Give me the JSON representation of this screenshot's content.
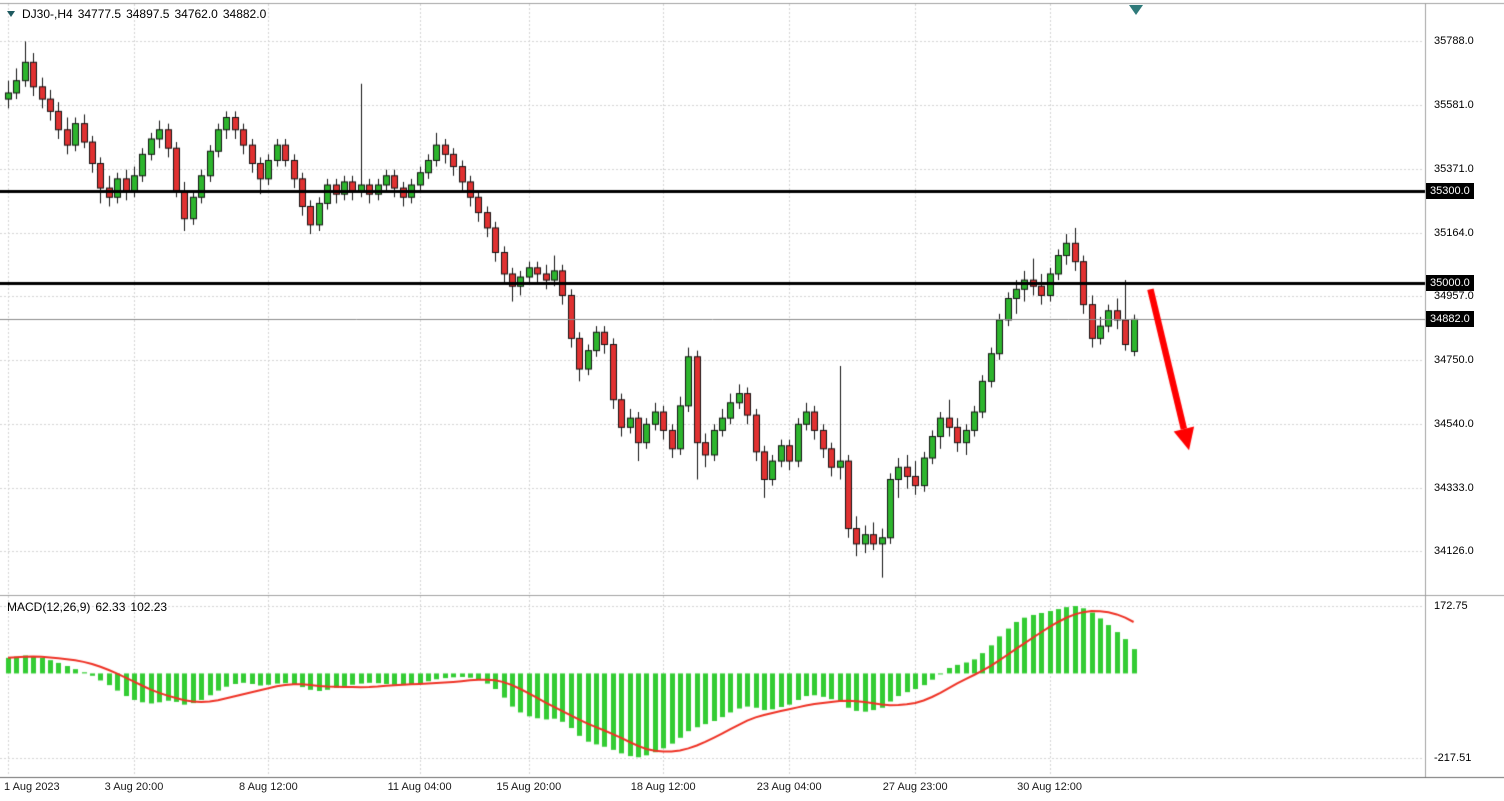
{
  "colors": {
    "bull": "#2db52d",
    "bear": "#e03131",
    "candle_border": "#111111",
    "wick": "#111111",
    "histogram": "#33cc33",
    "signal_line": "#ee3124",
    "level_line": "#000000",
    "current_price_line": "#8a8a8a",
    "arrow": "#ff0000",
    "grid": "#d4d4d4",
    "pane_border": "#a0a0a0",
    "bottom_axis_line": "#6b6b6b",
    "badge_bg": "#000000",
    "badge_text": "#ffffff"
  },
  "header": {
    "symbol": "DJ30-,H4",
    "open": "34777.5",
    "high": "34897.5",
    "low": "34762.0",
    "close": "34882.0"
  },
  "indicator": {
    "label": "MACD(12,26,9)",
    "macd_value": "62.33",
    "signal_value": "102.23"
  },
  "chart_data": [
    {
      "type": "candlestick",
      "symbol": "DJ30-",
      "timeframe": "H4",
      "ylim": [
        33990,
        35910
      ],
      "price_axis_labels": [
        {
          "text": "35788.0",
          "price": 35788.0
        },
        {
          "text": "35581.0",
          "price": 35581.0
        },
        {
          "text": "35371.0",
          "price": 35371.0
        },
        {
          "text": "35164.0",
          "price": 35164.0
        },
        {
          "text": "34957.0",
          "price": 34957.0
        },
        {
          "text": "34750.0",
          "price": 34750.0
        },
        {
          "text": "34540.0",
          "price": 34540.0
        },
        {
          "text": "34333.0",
          "price": 34333.0
        },
        {
          "text": "34126.0",
          "price": 34126.0
        }
      ],
      "level_lines": [
        {
          "label": "35300.0",
          "price": 35300.0
        },
        {
          "label": "35000.0",
          "price": 35000.0
        }
      ],
      "current_price": {
        "label": "34882.0",
        "value": 34882.0
      },
      "time_labels": [
        {
          "text": "1 Aug 2023",
          "bar": 0
        },
        {
          "text": "3 Aug 20:00",
          "bar": 15
        },
        {
          "text": "8 Aug 12:00",
          "bar": 31
        },
        {
          "text": "11 Aug 04:00",
          "bar": 49
        },
        {
          "text": "15 Aug 20:00",
          "bar": 62
        },
        {
          "text": "18 Aug 12:00",
          "bar": 78
        },
        {
          "text": "23 Aug 04:00",
          "bar": 93
        },
        {
          "text": "27 Aug 23:00",
          "bar": 108
        },
        {
          "text": "30 Aug 12:00",
          "bar": 124
        }
      ],
      "annotations": [
        {
          "type": "arrow",
          "from": {
            "bar": 136,
            "price": 34980
          },
          "to": {
            "bar": 140.6,
            "price": 34455
          }
        }
      ],
      "candles": [
        [
          35600,
          35660,
          35570,
          35620
        ],
        [
          35620,
          35700,
          35600,
          35660
        ],
        [
          35660,
          35788,
          35640,
          35720
        ],
        [
          35720,
          35750,
          35610,
          35640
        ],
        [
          35640,
          35670,
          35570,
          35600
        ],
        [
          35600,
          35630,
          35530,
          35560
        ],
        [
          35560,
          35590,
          35470,
          35500
        ],
        [
          35500,
          35540,
          35420,
          35450
        ],
        [
          35450,
          35540,
          35430,
          35520
        ],
        [
          35520,
          35550,
          35440,
          35460
        ],
        [
          35460,
          35480,
          35360,
          35390
        ],
        [
          35390,
          35410,
          35260,
          35310
        ],
        [
          35310,
          35350,
          35250,
          35280
        ],
        [
          35280,
          35360,
          35260,
          35340
        ],
        [
          35340,
          35370,
          35270,
          35300
        ],
        [
          35300,
          35380,
          35280,
          35350
        ],
        [
          35350,
          35440,
          35330,
          35420
        ],
        [
          35420,
          35490,
          35400,
          35470
        ],
        [
          35470,
          35530,
          35440,
          35500
        ],
        [
          35500,
          35520,
          35410,
          35440
        ],
        [
          35440,
          35460,
          35280,
          35300
        ],
        [
          35300,
          35330,
          35170,
          35210
        ],
        [
          35210,
          35300,
          35190,
          35280
        ],
        [
          35280,
          35370,
          35260,
          35350
        ],
        [
          35350,
          35450,
          35330,
          35430
        ],
        [
          35430,
          35520,
          35410,
          35500
        ],
        [
          35500,
          35560,
          35470,
          35540
        ],
        [
          35540,
          35560,
          35470,
          35500
        ],
        [
          35500,
          35520,
          35420,
          35450
        ],
        [
          35450,
          35470,
          35360,
          35390
        ],
        [
          35390,
          35410,
          35290,
          35340
        ],
        [
          35340,
          35420,
          35320,
          35400
        ],
        [
          35400,
          35470,
          35380,
          35450
        ],
        [
          35450,
          35470,
          35380,
          35400
        ],
        [
          35400,
          35420,
          35310,
          35340
        ],
        [
          35340,
          35360,
          35220,
          35250
        ],
        [
          35250,
          35270,
          35160,
          35190
        ],
        [
          35190,
          35280,
          35170,
          35260
        ],
        [
          35260,
          35340,
          35240,
          35320
        ],
        [
          35320,
          35340,
          35260,
          35290
        ],
        [
          35290,
          35350,
          35270,
          35330
        ],
        [
          35330,
          35350,
          35270,
          35300
        ],
        [
          35300,
          35650,
          35280,
          35320
        ],
        [
          35320,
          35340,
          35260,
          35290
        ],
        [
          35290,
          35340,
          35270,
          35320
        ],
        [
          35320,
          35370,
          35300,
          35350
        ],
        [
          35350,
          35370,
          35280,
          35310
        ],
        [
          35310,
          35330,
          35250,
          35280
        ],
        [
          35280,
          35340,
          35260,
          35320
        ],
        [
          35320,
          35380,
          35300,
          35360
        ],
        [
          35360,
          35420,
          35340,
          35400
        ],
        [
          35400,
          35490,
          35380,
          35450
        ],
        [
          35450,
          35470,
          35390,
          35420
        ],
        [
          35420,
          35440,
          35350,
          35380
        ],
        [
          35380,
          35400,
          35300,
          35330
        ],
        [
          35330,
          35350,
          35250,
          35280
        ],
        [
          35280,
          35300,
          35200,
          35230
        ],
        [
          35230,
          35250,
          35150,
          35180
        ],
        [
          35180,
          35200,
          35070,
          35100
        ],
        [
          35100,
          35120,
          35000,
          35030
        ],
        [
          35030,
          35050,
          34940,
          34990
        ],
        [
          34990,
          35040,
          34960,
          35020
        ],
        [
          35020,
          35070,
          35000,
          35050
        ],
        [
          35050,
          35070,
          35000,
          35030
        ],
        [
          35030,
          35060,
          34980,
          35010
        ],
        [
          35010,
          35090,
          34990,
          35040
        ],
        [
          35040,
          35060,
          34930,
          34960
        ],
        [
          34960,
          34980,
          34790,
          34820
        ],
        [
          34820,
          34840,
          34680,
          34720
        ],
        [
          34720,
          34800,
          34700,
          34780
        ],
        [
          34780,
          34860,
          34760,
          34840
        ],
        [
          34840,
          34860,
          34770,
          34800
        ],
        [
          34800,
          34820,
          34590,
          34620
        ],
        [
          34620,
          34640,
          34500,
          34530
        ],
        [
          34530,
          34590,
          34510,
          34560
        ],
        [
          34560,
          34580,
          34420,
          34480
        ],
        [
          34480,
          34560,
          34460,
          34540
        ],
        [
          34540,
          34610,
          34520,
          34580
        ],
        [
          34580,
          34600,
          34490,
          34520
        ],
        [
          34520,
          34540,
          34430,
          34460
        ],
        [
          34460,
          34630,
          34440,
          34600
        ],
        [
          34600,
          34790,
          34580,
          34760
        ],
        [
          34760,
          34780,
          34360,
          34480
        ],
        [
          34480,
          34510,
          34400,
          34440
        ],
        [
          34440,
          34540,
          34420,
          34520
        ],
        [
          34520,
          34590,
          34500,
          34560
        ],
        [
          34560,
          34640,
          34540,
          34610
        ],
        [
          34610,
          34670,
          34590,
          34640
        ],
        [
          34640,
          34660,
          34540,
          34570
        ],
        [
          34570,
          34590,
          34420,
          34450
        ],
        [
          34450,
          34470,
          34300,
          34360
        ],
        [
          34360,
          34440,
          34340,
          34420
        ],
        [
          34420,
          34490,
          34400,
          34470
        ],
        [
          34470,
          34490,
          34390,
          34420
        ],
        [
          34420,
          34560,
          34400,
          34540
        ],
        [
          34540,
          34610,
          34520,
          34580
        ],
        [
          34580,
          34600,
          34490,
          34520
        ],
        [
          34520,
          34540,
          34430,
          34460
        ],
        [
          34460,
          34480,
          34370,
          34400
        ],
        [
          34400,
          34730,
          34360,
          34420
        ],
        [
          34420,
          34440,
          34170,
          34200
        ],
        [
          34200,
          34240,
          34110,
          34150
        ],
        [
          34150,
          34210,
          34120,
          34180
        ],
        [
          34180,
          34220,
          34130,
          34150
        ],
        [
          34150,
          34200,
          34040,
          34170
        ],
        [
          34170,
          34380,
          34150,
          34360
        ],
        [
          34360,
          34430,
          34300,
          34400
        ],
        [
          34400,
          34440,
          34330,
          34370
        ],
        [
          34370,
          34420,
          34310,
          34340
        ],
        [
          34340,
          34450,
          34320,
          34430
        ],
        [
          34430,
          34520,
          34410,
          34500
        ],
        [
          34500,
          34580,
          34460,
          34560
        ],
        [
          34560,
          34620,
          34500,
          34530
        ],
        [
          34530,
          34560,
          34450,
          34480
        ],
        [
          34480,
          34540,
          34440,
          34520
        ],
        [
          34520,
          34600,
          34500,
          34580
        ],
        [
          34580,
          34700,
          34560,
          34680
        ],
        [
          34680,
          34790,
          34660,
          34770
        ],
        [
          34770,
          34900,
          34750,
          34880
        ],
        [
          34880,
          34970,
          34860,
          34950
        ],
        [
          34950,
          35010,
          34900,
          34980
        ],
        [
          34980,
          35040,
          34940,
          35010
        ],
        [
          35010,
          35080,
          34960,
          34990
        ],
        [
          34990,
          35030,
          34930,
          34960
        ],
        [
          34960,
          35050,
          34940,
          35030
        ],
        [
          35030,
          35110,
          35010,
          35090
        ],
        [
          35090,
          35160,
          35060,
          35130
        ],
        [
          35130,
          35180,
          35040,
          35070
        ],
        [
          35070,
          35090,
          34900,
          34930
        ],
        [
          34930,
          34960,
          34790,
          34820
        ],
        [
          34820,
          34890,
          34800,
          34860
        ],
        [
          34860,
          34930,
          34840,
          34910
        ],
        [
          34910,
          34950,
          34850,
          34880
        ],
        [
          34880,
          35010,
          34780,
          34800
        ],
        [
          34777.5,
          34897.5,
          34762.0,
          34882.0
        ]
      ]
    },
    {
      "type": "bar",
      "name": "MACD(12,26,9)",
      "ylim": [
        -263,
        196
      ],
      "axis_labels": [
        {
          "text": "172.75",
          "value": 172.75
        },
        {
          "text": "-217.51",
          "value": -217.51
        }
      ],
      "signal_smoothing": "sma-9",
      "last_macd": 62.33,
      "last_signal": 102.23,
      "values": [
        40,
        43,
        46,
        44,
        40,
        34,
        27,
        19,
        11,
        3,
        -6,
        -18,
        -30,
        -44,
        -58,
        -68,
        -74,
        -77,
        -74,
        -70,
        -73,
        -80,
        -76,
        -68,
        -56,
        -44,
        -34,
        -27,
        -24,
        -27,
        -31,
        -29,
        -26,
        -25,
        -28,
        -35,
        -42,
        -45,
        -42,
        -37,
        -32,
        -29,
        -26,
        -24,
        -25,
        -27,
        -29,
        -30,
        -28,
        -25,
        -20,
        -15,
        -12,
        -10,
        -9,
        -11,
        -16,
        -26,
        -40,
        -62,
        -85,
        -100,
        -110,
        -115,
        -118,
        -116,
        -124,
        -140,
        -160,
        -175,
        -182,
        -188,
        -196,
        -205,
        -212,
        -215,
        -210,
        -202,
        -192,
        -180,
        -165,
        -148,
        -138,
        -130,
        -122,
        -112,
        -100,
        -90,
        -85,
        -88,
        -94,
        -92,
        -86,
        -80,
        -68,
        -58,
        -56,
        -60,
        -66,
        -70,
        -88,
        -96,
        -98,
        -94,
        -88,
        -72,
        -58,
        -48,
        -40,
        -30,
        -16,
        -2,
        14,
        22,
        28,
        36,
        52,
        72,
        95,
        115,
        132,
        143,
        150,
        155,
        160,
        165,
        170,
        172.75,
        167,
        156,
        141,
        124,
        106,
        88,
        62.33
      ]
    }
  ]
}
